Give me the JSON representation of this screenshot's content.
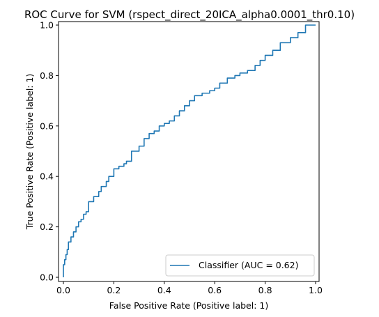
{
  "chart_data": {
    "type": "line",
    "title": "ROC Curve for SVM (rspect_direct_20ICA_alpha0.0001_thr0.10)",
    "xlabel": "False Positive Rate (Positive label: 1)",
    "ylabel": "True Positive Rate (Positive label: 1)",
    "xlim": [
      0,
      1
    ],
    "ylim": [
      0,
      1
    ],
    "xticks": [
      0.0,
      0.2,
      0.4,
      0.6,
      0.8,
      1.0
    ],
    "yticks": [
      0.0,
      0.2,
      0.4,
      0.6,
      0.8,
      1.0
    ],
    "xtick_labels": [
      "0.0",
      "0.2",
      "0.4",
      "0.6",
      "0.8",
      "1.0"
    ],
    "ytick_labels": [
      "0.0",
      "0.2",
      "0.4",
      "0.6",
      "0.8",
      "1.0"
    ],
    "grid": false,
    "legend_position": "lower-right",
    "series": [
      {
        "name": "Classifier (AUC = 0.62)",
        "color": "#1f77b4",
        "x": [
          0.0,
          0.0,
          0.005,
          0.01,
          0.015,
          0.02,
          0.03,
          0.04,
          0.05,
          0.06,
          0.07,
          0.08,
          0.09,
          0.1,
          0.12,
          0.14,
          0.15,
          0.17,
          0.18,
          0.2,
          0.22,
          0.24,
          0.25,
          0.27,
          0.3,
          0.32,
          0.34,
          0.36,
          0.38,
          0.4,
          0.42,
          0.44,
          0.46,
          0.48,
          0.5,
          0.52,
          0.55,
          0.58,
          0.6,
          0.62,
          0.65,
          0.68,
          0.7,
          0.73,
          0.76,
          0.78,
          0.8,
          0.83,
          0.86,
          0.9,
          0.93,
          0.96,
          1.0
        ],
        "y": [
          0.0,
          0.03,
          0.05,
          0.07,
          0.09,
          0.11,
          0.14,
          0.16,
          0.18,
          0.2,
          0.22,
          0.23,
          0.25,
          0.26,
          0.3,
          0.32,
          0.34,
          0.36,
          0.38,
          0.4,
          0.43,
          0.44,
          0.45,
          0.46,
          0.5,
          0.52,
          0.55,
          0.57,
          0.58,
          0.6,
          0.61,
          0.62,
          0.64,
          0.66,
          0.68,
          0.7,
          0.72,
          0.73,
          0.74,
          0.75,
          0.77,
          0.79,
          0.8,
          0.81,
          0.82,
          0.84,
          0.86,
          0.88,
          0.9,
          0.93,
          0.95,
          0.97,
          1.0
        ]
      }
    ]
  }
}
